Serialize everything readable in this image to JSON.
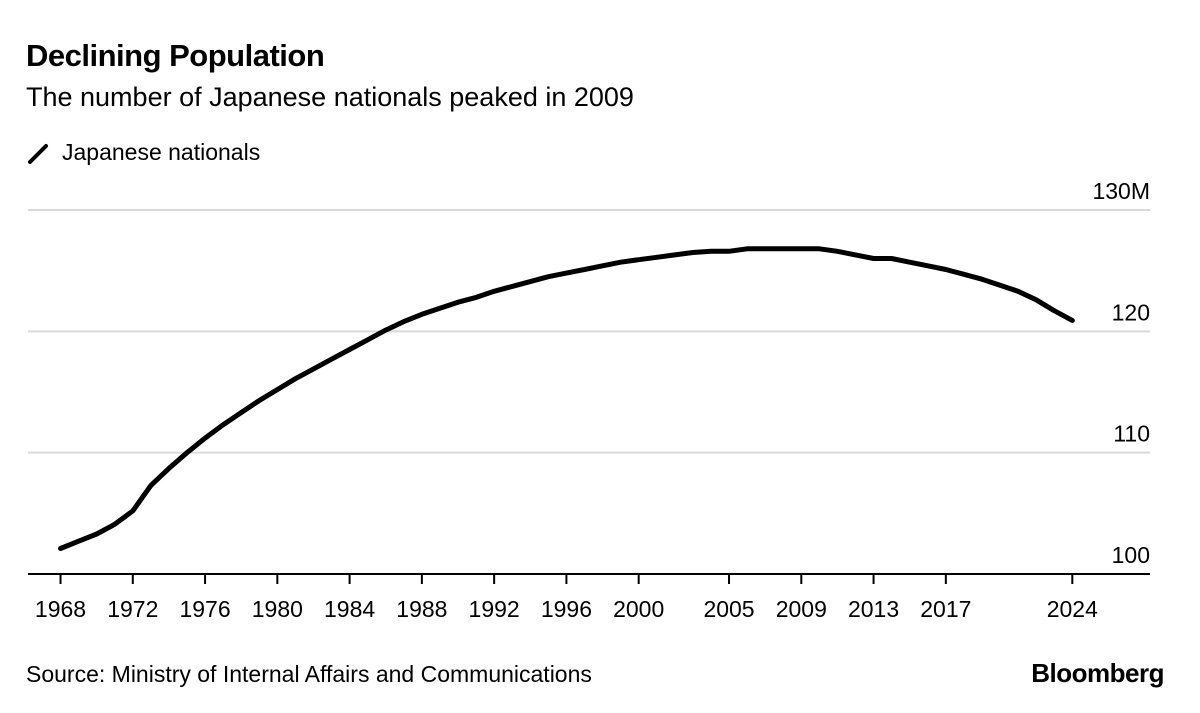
{
  "header": {
    "title": "Declining Population",
    "subtitle": "The number of Japanese nationals peaked in 2009"
  },
  "footer": {
    "source": "Source: Ministry of Internal Affairs and Communications",
    "brand": "Bloomberg"
  },
  "colors": {
    "line": "#000000",
    "grid": "#d9d9d9",
    "axis": "#000000"
  },
  "chart_data": {
    "type": "line",
    "title": "Declining Population",
    "subtitle": "The number of Japanese nationals peaked in 2009",
    "xlabel": "",
    "ylabel": "",
    "ylim": [
      100,
      130
    ],
    "xlim": [
      1966.2,
      2028.3
    ],
    "y_ticks": [
      100,
      110,
      120,
      130
    ],
    "y_tick_labels": [
      "100",
      "110",
      "120",
      "130M"
    ],
    "x_ticks": [
      1968,
      1972,
      1976,
      1980,
      1984,
      1988,
      1992,
      1996,
      2000,
      2005,
      2009,
      2013,
      2017,
      2024
    ],
    "grid": true,
    "legend_position": "top-left",
    "series": [
      {
        "name": "Japanese nationals",
        "x": [
          1968,
          1969,
          1970,
          1971,
          1972,
          1973,
          1974,
          1975,
          1976,
          1977,
          1978,
          1979,
          1980,
          1981,
          1982,
          1983,
          1984,
          1985,
          1986,
          1987,
          1988,
          1989,
          1990,
          1991,
          1992,
          1993,
          1994,
          1995,
          1996,
          1997,
          1998,
          1999,
          2000,
          2001,
          2002,
          2003,
          2004,
          2005,
          2006,
          2007,
          2008,
          2009,
          2010,
          2011,
          2012,
          2013,
          2014,
          2015,
          2016,
          2017,
          2018,
          2019,
          2020,
          2021,
          2022,
          2023,
          2024
        ],
        "values": [
          102.1,
          102.7,
          103.3,
          104.1,
          105.2,
          107.3,
          108.7,
          110.0,
          111.2,
          112.3,
          113.3,
          114.3,
          115.2,
          116.1,
          116.9,
          117.7,
          118.5,
          119.3,
          120.1,
          120.8,
          121.4,
          121.9,
          122.4,
          122.8,
          123.3,
          123.7,
          124.1,
          124.5,
          124.8,
          125.1,
          125.4,
          125.7,
          125.9,
          126.1,
          126.3,
          126.5,
          126.6,
          126.6,
          126.8,
          126.8,
          126.8,
          126.8,
          126.8,
          126.6,
          126.3,
          126.0,
          126.0,
          125.7,
          125.4,
          125.1,
          124.7,
          124.3,
          123.8,
          123.3,
          122.6,
          121.7,
          120.9
        ]
      }
    ]
  }
}
